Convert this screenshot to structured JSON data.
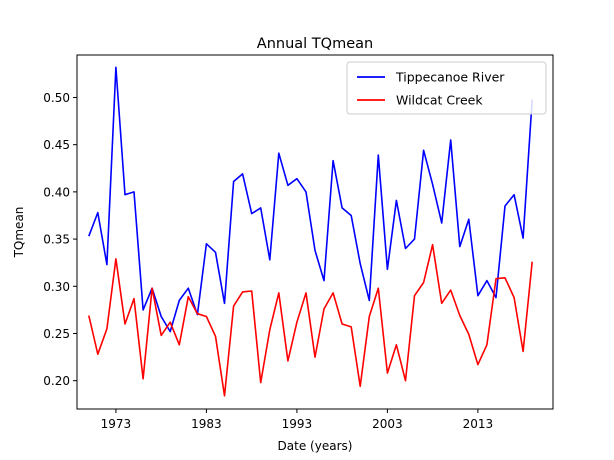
{
  "chart_data": {
    "type": "line",
    "title": "Annual TQmean",
    "xlabel": "Date (years)",
    "ylabel": "TQmean",
    "xlim": [
      1968.7,
      2021.3
    ],
    "ylim": [
      0.17,
      0.545
    ],
    "x_ticks": [
      1973,
      1983,
      1993,
      2003,
      2013
    ],
    "y_ticks": [
      0.2,
      0.25,
      0.3,
      0.35,
      0.4,
      0.45,
      0.5
    ],
    "y_tick_labels": [
      "0.20",
      "0.25",
      "0.30",
      "0.35",
      "0.40",
      "0.45",
      "0.50"
    ],
    "grid": false,
    "legend_position": "top-right",
    "x": [
      1970,
      1971,
      1972,
      1973,
      1974,
      1975,
      1976,
      1977,
      1978,
      1979,
      1980,
      1981,
      1982,
      1983,
      1984,
      1985,
      1986,
      1987,
      1988,
      1989,
      1990,
      1991,
      1992,
      1993,
      1994,
      1995,
      1996,
      1997,
      1998,
      1999,
      2000,
      2001,
      2002,
      2003,
      2004,
      2005,
      2006,
      2007,
      2008,
      2009,
      2010,
      2011,
      2012,
      2013,
      2014,
      2015,
      2016,
      2017,
      2018,
      2019,
      2020
    ],
    "series": [
      {
        "name": "Tippecanoe River",
        "color": "#0000ff",
        "values": [
          0.353,
          0.378,
          0.323,
          0.532,
          0.397,
          0.4,
          0.275,
          0.298,
          0.268,
          0.252,
          0.285,
          0.298,
          0.27,
          0.345,
          0.336,
          0.282,
          0.411,
          0.419,
          0.377,
          0.383,
          0.328,
          0.441,
          0.407,
          0.414,
          0.4,
          0.338,
          0.306,
          0.433,
          0.383,
          0.375,
          0.324,
          0.285,
          0.439,
          0.318,
          0.391,
          0.34,
          0.35,
          0.444,
          0.408,
          0.367,
          0.455,
          0.342,
          0.371,
          0.29,
          0.306,
          0.288,
          0.385,
          0.397,
          0.351,
          0.498,
          null
        ]
      },
      {
        "name": "Wildcat Creek",
        "color": "#ff0000",
        "values": [
          0.269,
          0.228,
          0.255,
          0.329,
          0.26,
          0.287,
          0.202,
          0.298,
          0.248,
          0.262,
          0.238,
          0.289,
          0.271,
          0.268,
          0.247,
          0.184,
          0.279,
          0.294,
          0.295,
          0.198,
          0.254,
          0.293,
          0.221,
          0.262,
          0.293,
          0.225,
          0.276,
          0.293,
          0.26,
          0.257,
          0.194,
          0.268,
          0.298,
          0.208,
          0.238,
          0.2,
          0.29,
          0.304,
          0.344,
          0.282,
          0.296,
          0.269,
          0.249,
          0.217,
          0.238,
          0.308,
          0.309,
          0.288,
          0.231,
          0.326,
          null
        ]
      }
    ]
  }
}
